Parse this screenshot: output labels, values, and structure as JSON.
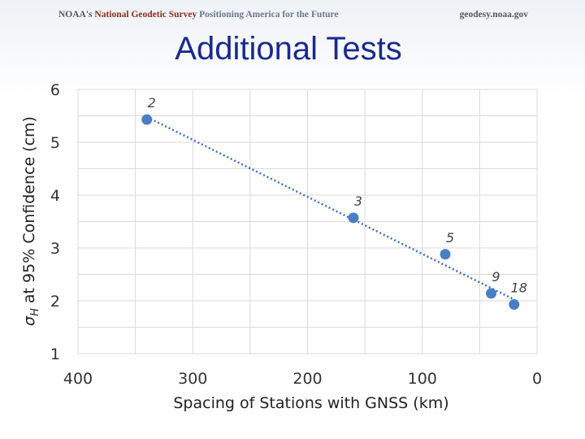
{
  "banner": {
    "agency": "NOAA's",
    "survey": "National Geodetic Survey",
    "tagline": "Positioning America for the Future",
    "site": "geodesy.noaa.gov"
  },
  "slide": {
    "title": "Additional Tests"
  },
  "colors": {
    "point": "#4a7ec4",
    "trend": "#3f6fb4",
    "grid": "#d9d9d9",
    "title": "#1a2b8c"
  },
  "chart_data": {
    "type": "scatter",
    "title": "",
    "xlabel": "Spacing of Stations with GNSS (km)",
    "ylabel": "σH at 95% Confidence (cm)",
    "ylabel_parts": {
      "sigma": "σ",
      "sub": "H",
      "rest": " at 95% Confidence (cm)"
    },
    "xlim": [
      400,
      0
    ],
    "ylim": [
      1,
      6
    ],
    "x_reversed": true,
    "xticks": [
      400,
      300,
      200,
      100,
      0
    ],
    "yticks": [
      1,
      2,
      3,
      4,
      5,
      6
    ],
    "grid": true,
    "trendline": "linear dotted",
    "points": [
      {
        "x": 340,
        "y": 5.43,
        "label": "2"
      },
      {
        "x": 160,
        "y": 3.57,
        "label": "3"
      },
      {
        "x": 80,
        "y": 2.88,
        "label": "5"
      },
      {
        "x": 40,
        "y": 2.14,
        "label": "9"
      },
      {
        "x": 20,
        "y": 1.93,
        "label": "18"
      }
    ]
  }
}
